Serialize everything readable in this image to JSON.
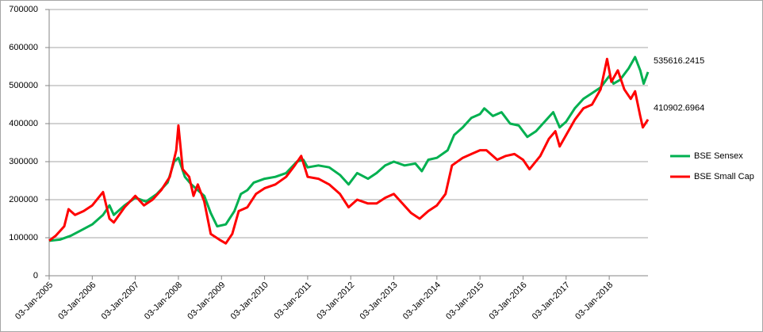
{
  "chart_data": {
    "type": "line",
    "xlim": [
      2005,
      2018.9
    ],
    "xticks": [
      {
        "value": 2005,
        "label": "03-Jan-2005"
      },
      {
        "value": 2006,
        "label": "03-Jan-2006"
      },
      {
        "value": 2007,
        "label": "03-Jan-2007"
      },
      {
        "value": 2008,
        "label": "03-Jan-2008"
      },
      {
        "value": 2009,
        "label": "03-Jan-2009"
      },
      {
        "value": 2010,
        "label": "03-Jan-2010"
      },
      {
        "value": 2011,
        "label": "03-Jan-2011"
      },
      {
        "value": 2012,
        "label": "03-Jan-2012"
      },
      {
        "value": 2013,
        "label": "03-Jan-2013"
      },
      {
        "value": 2014,
        "label": "03-Jan-2014"
      },
      {
        "value": 2015,
        "label": "03-Jan-2015"
      },
      {
        "value": 2016,
        "label": "03-Jan-2016"
      },
      {
        "value": 2017,
        "label": "03-Jan-2017"
      },
      {
        "value": 2018,
        "label": "03-Jan-2018"
      }
    ],
    "ylim": [
      0,
      700000
    ],
    "yticks": [
      0,
      100000,
      200000,
      300000,
      400000,
      500000,
      600000,
      700000
    ],
    "grid": true,
    "legend": "right",
    "series": [
      {
        "name": "BSE Sensex",
        "color": "#00b050",
        "x": [
          2005.0,
          2005.25,
          2005.5,
          2005.75,
          2006.0,
          2006.25,
          2006.4,
          2006.5,
          2006.75,
          2007.0,
          2007.25,
          2007.5,
          2007.75,
          2007.9,
          2008.0,
          2008.15,
          2008.3,
          2008.45,
          2008.6,
          2008.75,
          2008.9,
          2009.1,
          2009.3,
          2009.45,
          2009.6,
          2009.75,
          2010.0,
          2010.25,
          2010.5,
          2010.75,
          2010.9,
          2011.0,
          2011.25,
          2011.5,
          2011.75,
          2011.95,
          2012.15,
          2012.4,
          2012.6,
          2012.8,
          2013.0,
          2013.25,
          2013.5,
          2013.65,
          2013.8,
          2014.0,
          2014.25,
          2014.4,
          2014.6,
          2014.8,
          2015.0,
          2015.1,
          2015.3,
          2015.5,
          2015.7,
          2015.9,
          2016.1,
          2016.3,
          2016.5,
          2016.7,
          2016.85,
          2017.0,
          2017.2,
          2017.4,
          2017.6,
          2017.8,
          2018.0,
          2018.1,
          2018.25,
          2018.45,
          2018.6,
          2018.72,
          2018.8,
          2018.9
        ],
        "values": [
          92000,
          95000,
          105000,
          120000,
          135000,
          160000,
          185000,
          160000,
          185000,
          205000,
          195000,
          215000,
          245000,
          300000,
          310000,
          260000,
          240000,
          225000,
          210000,
          165000,
          130000,
          135000,
          170000,
          215000,
          225000,
          245000,
          255000,
          260000,
          270000,
          300000,
          305000,
          285000,
          290000,
          285000,
          265000,
          240000,
          270000,
          255000,
          270000,
          290000,
          300000,
          290000,
          295000,
          275000,
          305000,
          310000,
          330000,
          370000,
          390000,
          415000,
          425000,
          440000,
          420000,
          430000,
          400000,
          395000,
          365000,
          380000,
          405000,
          430000,
          390000,
          405000,
          440000,
          465000,
          480000,
          495000,
          525000,
          505000,
          515000,
          545000,
          575000,
          540000,
          505000,
          535616.2415
        ]
      },
      {
        "name": "BSE Small Cap",
        "color": "#ff0000",
        "x": [
          2005.0,
          2005.15,
          2005.35,
          2005.45,
          2005.6,
          2005.8,
          2006.0,
          2006.25,
          2006.4,
          2006.5,
          2006.75,
          2007.0,
          2007.2,
          2007.4,
          2007.6,
          2007.8,
          2007.95,
          2008.0,
          2008.1,
          2008.25,
          2008.35,
          2008.45,
          2008.6,
          2008.75,
          2008.95,
          2009.1,
          2009.25,
          2009.4,
          2009.6,
          2009.8,
          2010.0,
          2010.25,
          2010.5,
          2010.7,
          2010.85,
          2011.0,
          2011.25,
          2011.5,
          2011.75,
          2011.95,
          2012.15,
          2012.4,
          2012.6,
          2012.8,
          2013.0,
          2013.2,
          2013.4,
          2013.6,
          2013.8,
          2014.0,
          2014.2,
          2014.35,
          2014.6,
          2014.8,
          2015.0,
          2015.15,
          2015.4,
          2015.6,
          2015.8,
          2016.0,
          2016.15,
          2016.4,
          2016.6,
          2016.75,
          2016.85,
          2017.0,
          2017.2,
          2017.4,
          2017.6,
          2017.8,
          2017.95,
          2018.05,
          2018.2,
          2018.35,
          2018.5,
          2018.6,
          2018.72,
          2018.78,
          2018.9
        ],
        "values": [
          92000,
          105000,
          130000,
          175000,
          160000,
          170000,
          185000,
          220000,
          150000,
          140000,
          180000,
          210000,
          185000,
          200000,
          225000,
          260000,
          330000,
          395000,
          280000,
          260000,
          210000,
          240000,
          195000,
          110000,
          95000,
          85000,
          110000,
          170000,
          180000,
          215000,
          230000,
          240000,
          260000,
          290000,
          315000,
          260000,
          255000,
          240000,
          215000,
          180000,
          200000,
          190000,
          190000,
          205000,
          215000,
          190000,
          165000,
          150000,
          170000,
          185000,
          215000,
          290000,
          310000,
          320000,
          330000,
          330000,
          305000,
          315000,
          320000,
          305000,
          280000,
          315000,
          360000,
          380000,
          340000,
          370000,
          410000,
          440000,
          450000,
          490000,
          570000,
          510000,
          540000,
          490000,
          465000,
          485000,
          420000,
          390000,
          410902.6964
        ]
      }
    ]
  }
}
